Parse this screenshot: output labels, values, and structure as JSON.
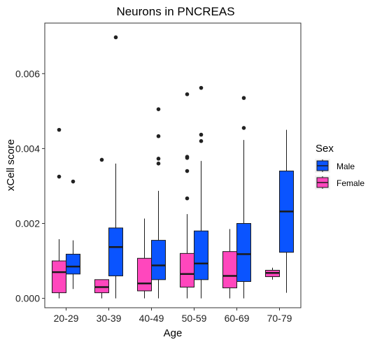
{
  "chart_data": {
    "type": "boxplot",
    "title": "Neurons in PNCREAS",
    "xlabel": "Age",
    "ylabel": "xCell score",
    "categories": [
      "20-29",
      "30-39",
      "40-49",
      "50-59",
      "60-69",
      "70-79"
    ],
    "yticks": [
      0.0,
      0.002,
      0.004,
      0.006
    ],
    "ytick_labels": [
      "0.000",
      "0.002",
      "0.004",
      "0.006"
    ],
    "ylim": [
      -0.00025,
      0.00735
    ],
    "grid": false,
    "legend": {
      "title": "Sex",
      "placement": "right",
      "entries": [
        "Male",
        "Female"
      ]
    },
    "colors": {
      "Female": "#ff47bd",
      "Male": "#0a54ff",
      "outline": "#1a1a1a"
    },
    "series": [
      {
        "name": "Female",
        "color": "#ff47bd",
        "boxes": [
          {
            "min": 0.0,
            "q1": 0.00015,
            "median": 0.0007,
            "q3": 0.001,
            "max": 0.00158,
            "outliers": [
              0.0045,
              0.00325
            ]
          },
          {
            "min": 0.0,
            "q1": 0.00015,
            "median": 0.0003,
            "q3": 0.0005,
            "max": 0.0005,
            "outliers": [
              0.0037
            ]
          },
          {
            "min": 0.0,
            "q1": 0.0002,
            "median": 0.0004,
            "q3": 0.00107,
            "max": 0.00213,
            "outliers": []
          },
          {
            "min": 0.0,
            "q1": 0.0003,
            "median": 0.00065,
            "q3": 0.0012,
            "max": 0.00225,
            "outliers": [
              0.00545,
              0.00378,
              0.00375,
              0.0034,
              0.00267
            ]
          },
          {
            "min": 0.0,
            "q1": 0.00028,
            "median": 0.0006,
            "q3": 0.00125,
            "max": 0.00185,
            "outliers": []
          },
          {
            "min": 0.0005,
            "q1": 0.00058,
            "median": 0.00068,
            "q3": 0.00075,
            "max": 0.00082,
            "outliers": []
          }
        ]
      },
      {
        "name": "Male",
        "color": "#0a54ff",
        "boxes": [
          {
            "min": 0.00025,
            "q1": 0.00065,
            "median": 0.00085,
            "q3": 0.00118,
            "max": 0.00155,
            "outliers": [
              0.00312
            ]
          },
          {
            "min": 0.0,
            "q1": 0.0006,
            "median": 0.00137,
            "q3": 0.00188,
            "max": 0.0036,
            "outliers": [
              0.00697
            ]
          },
          {
            "min": 0.0,
            "q1": 0.0005,
            "median": 0.00088,
            "q3": 0.00155,
            "max": 0.00287,
            "outliers": [
              0.00505,
              0.00433,
              0.00373,
              0.0036
            ]
          },
          {
            "min": 0.0,
            "q1": 0.0005,
            "median": 0.00093,
            "q3": 0.0018,
            "max": 0.00367,
            "outliers": [
              0.00562,
              0.00437,
              0.0042
            ]
          },
          {
            "min": 0.0,
            "q1": 0.00045,
            "median": 0.00118,
            "q3": 0.002,
            "max": 0.00423,
            "outliers": [
              0.00535,
              0.00455
            ]
          },
          {
            "min": 0.00015,
            "q1": 0.00123,
            "median": 0.00232,
            "q3": 0.0034,
            "max": 0.0045,
            "outliers": []
          }
        ]
      }
    ]
  }
}
